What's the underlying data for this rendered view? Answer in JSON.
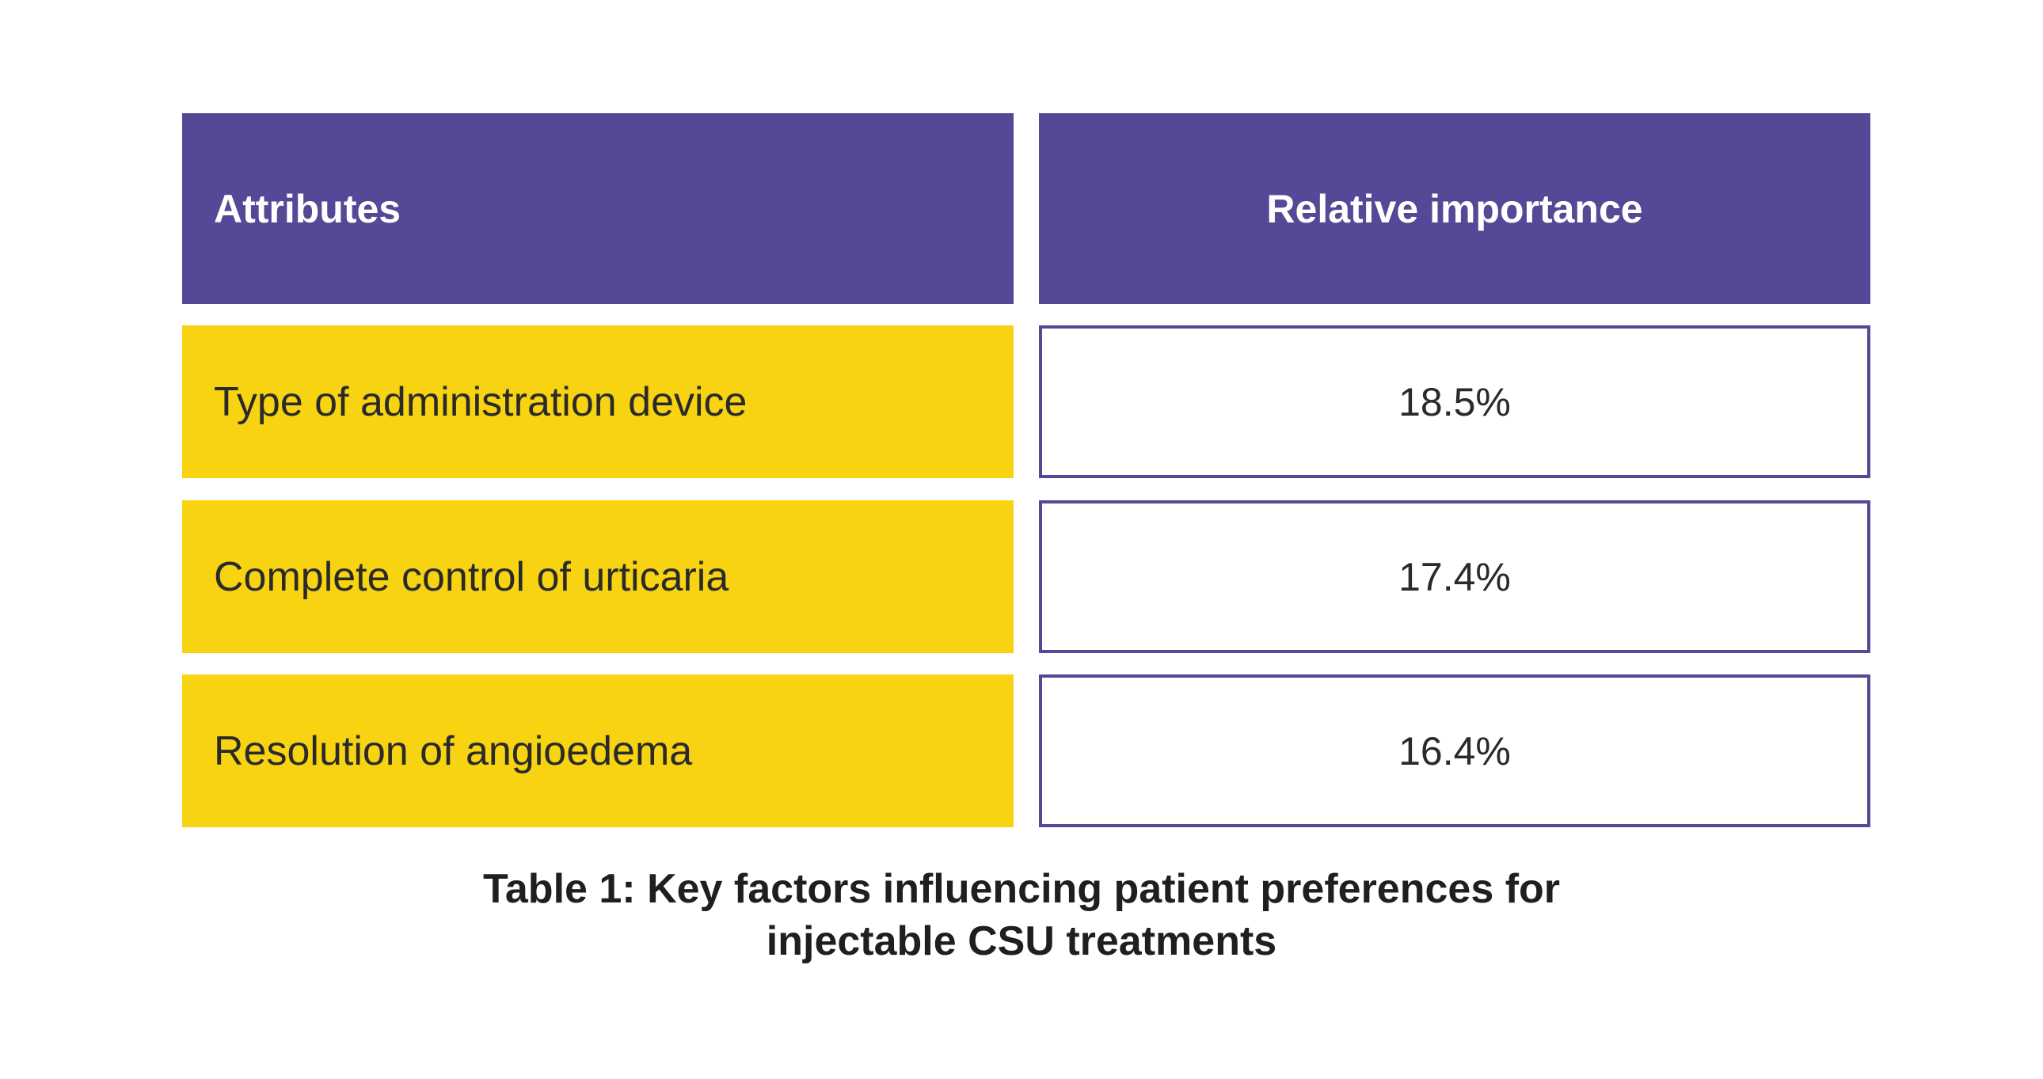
{
  "table": {
    "headers": [
      "Attributes",
      "Relative importance"
    ],
    "rows": [
      {
        "attribute": "Type of administration device",
        "importance": "18.5%"
      },
      {
        "attribute": "Complete control of urticaria",
        "importance": "17.4%"
      },
      {
        "attribute": "Resolution of angioedema",
        "importance": "16.4%"
      }
    ]
  },
  "caption": {
    "line1": "Table 1: Key factors influencing patient preferences for",
    "line2": "injectable CSU treatments"
  },
  "colors": {
    "header_bg": "#564896",
    "attribute_bg": "#f7d312",
    "value_border": "#564896"
  }
}
